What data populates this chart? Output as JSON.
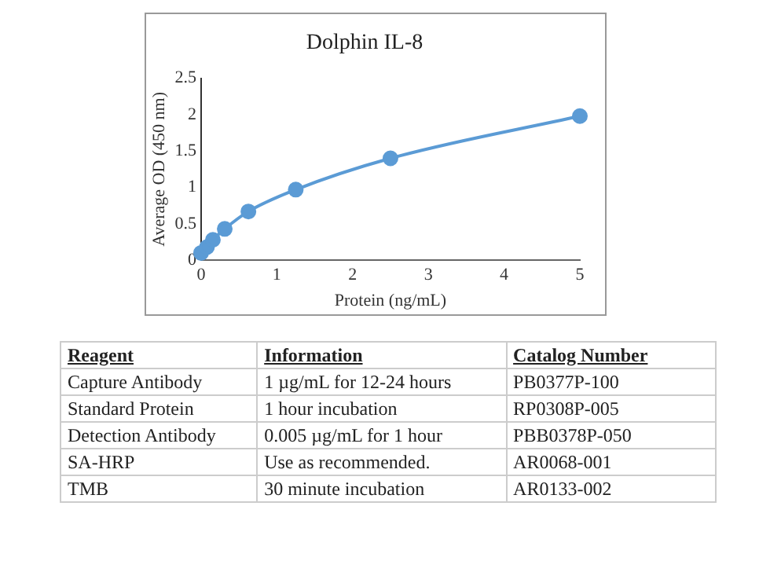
{
  "chart_data": {
    "type": "line",
    "title": "Dolphin IL-8",
    "xlabel": "Protein (ng/mL)",
    "ylabel": "Average OD (450 nm)",
    "x": [
      0,
      0.078,
      0.156,
      0.3125,
      0.625,
      1.25,
      2.5,
      5
    ],
    "series": [
      {
        "color": "#5b9bd5",
        "values": [
          0.1,
          0.18,
          0.28,
          0.43,
          0.67,
          0.97,
          1.4,
          1.98
        ]
      }
    ],
    "xlim": [
      0,
      5
    ],
    "xticks": [
      0,
      1,
      2,
      3,
      4,
      5
    ],
    "ylim": [
      0,
      2.5
    ],
    "yticks": [
      0,
      0.5,
      1,
      1.5,
      2,
      2.5
    ],
    "grid": false,
    "legend": false,
    "marker": "circle",
    "line_style": "solid",
    "annotations": [
      "Reagent",
      "Information",
      "Catalog Number",
      "Capture Antibody",
      "1 µg/mL for 12-24 hours",
      "PB0377P-100",
      "Standard Protein",
      "1 hour incubation",
      "RP0308P-005",
      "Detection Antibody",
      "0.005 µg/mL for 1 hour",
      "PBB0378P-050",
      "SA-HRP",
      "Use as recommended.",
      "AR0068-001",
      "TMB",
      "30 minute incubation",
      "AR0133-002"
    ]
  }
}
